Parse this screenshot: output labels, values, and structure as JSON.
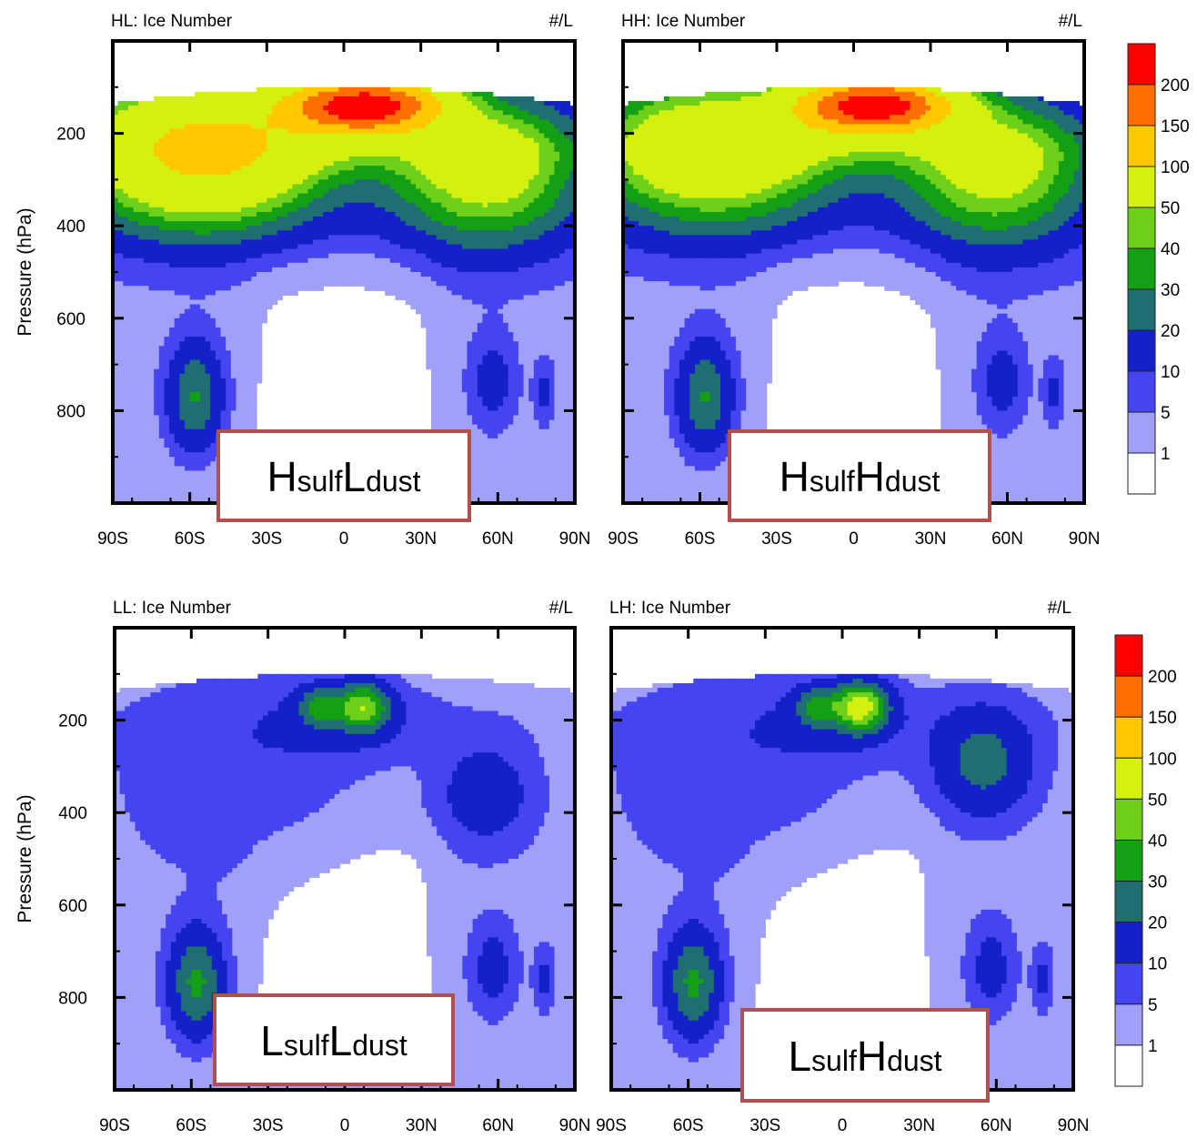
{
  "chart_data": [
    {
      "type": "contour",
      "panel_title": "HL: Ice Number",
      "units": "#/L",
      "case_label": {
        "first_big": "H",
        "first_small": "sulf",
        "second_big": "L",
        "second_small": "dust"
      },
      "ylabel": "Pressure (hPa)",
      "x_ticklabels": [
        "90S",
        "60S",
        "30S",
        "0",
        "30N",
        "60N",
        "90N"
      ],
      "y_ticklabels": [
        "200",
        "400",
        "600",
        "800"
      ],
      "xlim": [
        -90,
        90
      ],
      "ylim": [
        1000,
        0
      ],
      "levels": [
        1,
        5,
        10,
        20,
        30,
        40,
        50,
        100,
        150,
        200
      ],
      "peak": {
        "lat": 5,
        "p": 125,
        "value": 200
      }
    },
    {
      "type": "contour",
      "panel_title": "HH: Ice Number",
      "units": "#/L",
      "case_label": {
        "first_big": "H",
        "first_small": "sulf",
        "second_big": "H",
        "second_small": "dust"
      },
      "ylabel": "",
      "x_ticklabels": [
        "90S",
        "60S",
        "30S",
        "0",
        "30N",
        "60N",
        "90N"
      ],
      "y_ticklabels": [],
      "xlim": [
        -90,
        90
      ],
      "ylim": [
        1000,
        0
      ],
      "levels": [
        1,
        5,
        10,
        20,
        30,
        40,
        50,
        100,
        150,
        200
      ],
      "peak": {
        "lat": 5,
        "p": 125,
        "value": 200
      }
    },
    {
      "type": "contour",
      "panel_title": "LL: Ice Number",
      "units": "#/L",
      "case_label": {
        "first_big": "L",
        "first_small": "sulf",
        "second_big": "L",
        "second_small": "dust"
      },
      "ylabel": "Pressure (hPa)",
      "x_ticklabels": [
        "90S",
        "60S",
        "30S",
        "0",
        "30N",
        "60N",
        "90N"
      ],
      "y_ticklabels": [
        "200",
        "400",
        "600",
        "800"
      ],
      "xlim": [
        -90,
        90
      ],
      "ylim": [
        1000,
        0
      ],
      "levels": [
        1,
        5,
        10,
        20,
        30,
        40,
        50,
        100,
        150,
        200
      ],
      "peak": {
        "lat": 5,
        "p": 170,
        "value": 40
      }
    },
    {
      "type": "contour",
      "panel_title": "LH: Ice Number",
      "units": "#/L",
      "case_label": {
        "first_big": "L",
        "first_small": "sulf",
        "second_big": "H",
        "second_small": "dust"
      },
      "ylabel": "",
      "x_ticklabels": [
        "90S",
        "60S",
        "30S",
        "0",
        "30N",
        "60N",
        "90N"
      ],
      "y_ticklabels": [],
      "xlim": [
        -90,
        90
      ],
      "ylim": [
        1000,
        0
      ],
      "levels": [
        1,
        5,
        10,
        20,
        30,
        40,
        50,
        100,
        150,
        200
      ],
      "peak": {
        "lat": 5,
        "p": 170,
        "value": 50
      }
    }
  ],
  "colorbars": [
    {
      "labels": [
        "1",
        "5",
        "10",
        "20",
        "30",
        "40",
        "50",
        "100",
        "150",
        "200"
      ]
    },
    {
      "labels": [
        "1",
        "5",
        "10",
        "20",
        "30",
        "40",
        "50",
        "100",
        "150",
        "200"
      ]
    }
  ],
  "colors": {
    "levels_fill": [
      "#ffffff",
      "#a0a0f8",
      "#4444f0",
      "#1420c8",
      "#1e6e72",
      "#14a014",
      "#6ed018",
      "#d4f010",
      "#ffc800",
      "#ff6e00",
      "#ff0000"
    ],
    "case_label_border": "#b05050"
  }
}
